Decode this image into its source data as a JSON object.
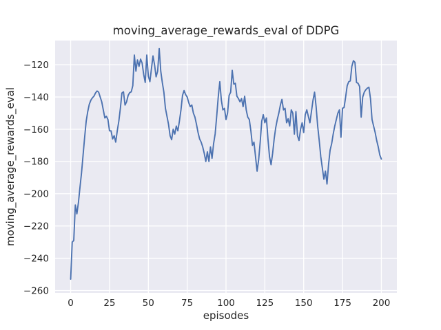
{
  "figure": {
    "title": "moving_average_rewards_eval of DDPG",
    "xlabel": "episodes",
    "ylabel": "moving_average_rewards_eval",
    "colors": {
      "figure_background": "#ffffff",
      "axes_background": "#eaeaf2",
      "grid": "#ffffff",
      "line": "#4c72b0",
      "text": "#262626"
    }
  },
  "chart_data": {
    "type": "line",
    "title": "moving_average_rewards_eval of DDPG",
    "xlabel": "episodes",
    "ylabel": "moving_average_rewards_eval",
    "xlim": [
      -10,
      210
    ],
    "ylim": [
      -261.5,
      -105
    ],
    "xticks": [
      0,
      25,
      50,
      75,
      100,
      125,
      150,
      175,
      200
    ],
    "yticks": [
      -260,
      -240,
      -220,
      -200,
      -180,
      -160,
      -140,
      -120
    ],
    "xtick_labels": [
      "0",
      "25",
      "50",
      "75",
      "100",
      "125",
      "150",
      "175",
      "200"
    ],
    "ytick_labels": [
      "−260",
      "−240",
      "−220",
      "−200",
      "−180",
      "−160",
      "−140",
      "−120"
    ],
    "grid": true,
    "legend": null,
    "series": [
      {
        "name": "moving_average_rewards_eval",
        "color": "#4c72b0",
        "x_start": 0,
        "x_step": 1,
        "y": [
          -253,
          -230,
          -229,
          -207,
          -212.5,
          -205.5,
          -196,
          -187,
          -176,
          -165,
          -155,
          -149,
          -144.5,
          -142,
          -140.5,
          -139.5,
          -137.5,
          -136.3,
          -137,
          -140,
          -143,
          -148,
          -153,
          -152,
          -154,
          -161,
          -161,
          -166,
          -164,
          -168,
          -161,
          -155,
          -147,
          -137.5,
          -136.8,
          -145,
          -143,
          -139,
          -137.3,
          -136.8,
          -133,
          -114,
          -124,
          -117,
          -121,
          -116.5,
          -119,
          -126,
          -131,
          -114,
          -127,
          -130.5,
          -122.5,
          -114.5,
          -120,
          -127.5,
          -124,
          -110,
          -124,
          -131,
          -137,
          -147,
          -152,
          -157,
          -164,
          -166.5,
          -160,
          -163,
          -158,
          -161,
          -155,
          -148,
          -139,
          -136,
          -138.5,
          -140,
          -143.5,
          -146,
          -145,
          -150,
          -152.5,
          -157,
          -162,
          -166,
          -168,
          -171,
          -175,
          -180,
          -174,
          -180,
          -171,
          -178,
          -169,
          -163,
          -152,
          -140,
          -130.5,
          -142,
          -148,
          -147,
          -154,
          -150,
          -139,
          -137,
          -123.5,
          -132,
          -131.5,
          -139.5,
          -141,
          -143,
          -141,
          -146,
          -139.5,
          -148,
          -152.5,
          -154,
          -161,
          -170,
          -168,
          -177,
          -186,
          -179,
          -168,
          -155,
          -151,
          -156,
          -153,
          -166,
          -177,
          -182,
          -175,
          -166,
          -159,
          -154,
          -150,
          -145,
          -141.5,
          -148,
          -147,
          -156,
          -153.5,
          -158,
          -148,
          -150,
          -163,
          -149,
          -164,
          -167,
          -160,
          -156,
          -162,
          -151,
          -148,
          -152,
          -156,
          -149,
          -142,
          -137,
          -146,
          -158,
          -167,
          -177,
          -184,
          -191,
          -186,
          -194,
          -182,
          -173,
          -169,
          -163,
          -158,
          -154,
          -150,
          -148,
          -165,
          -147,
          -146.5,
          -140,
          -133,
          -130.5,
          -130,
          -121,
          -117.5,
          -118.5,
          -131,
          -131.5,
          -133.5,
          -152.5,
          -140,
          -137,
          -135.5,
          -134.5,
          -134,
          -141,
          -154,
          -158,
          -162,
          -167,
          -171,
          -176,
          -178.5
        ]
      }
    ]
  }
}
